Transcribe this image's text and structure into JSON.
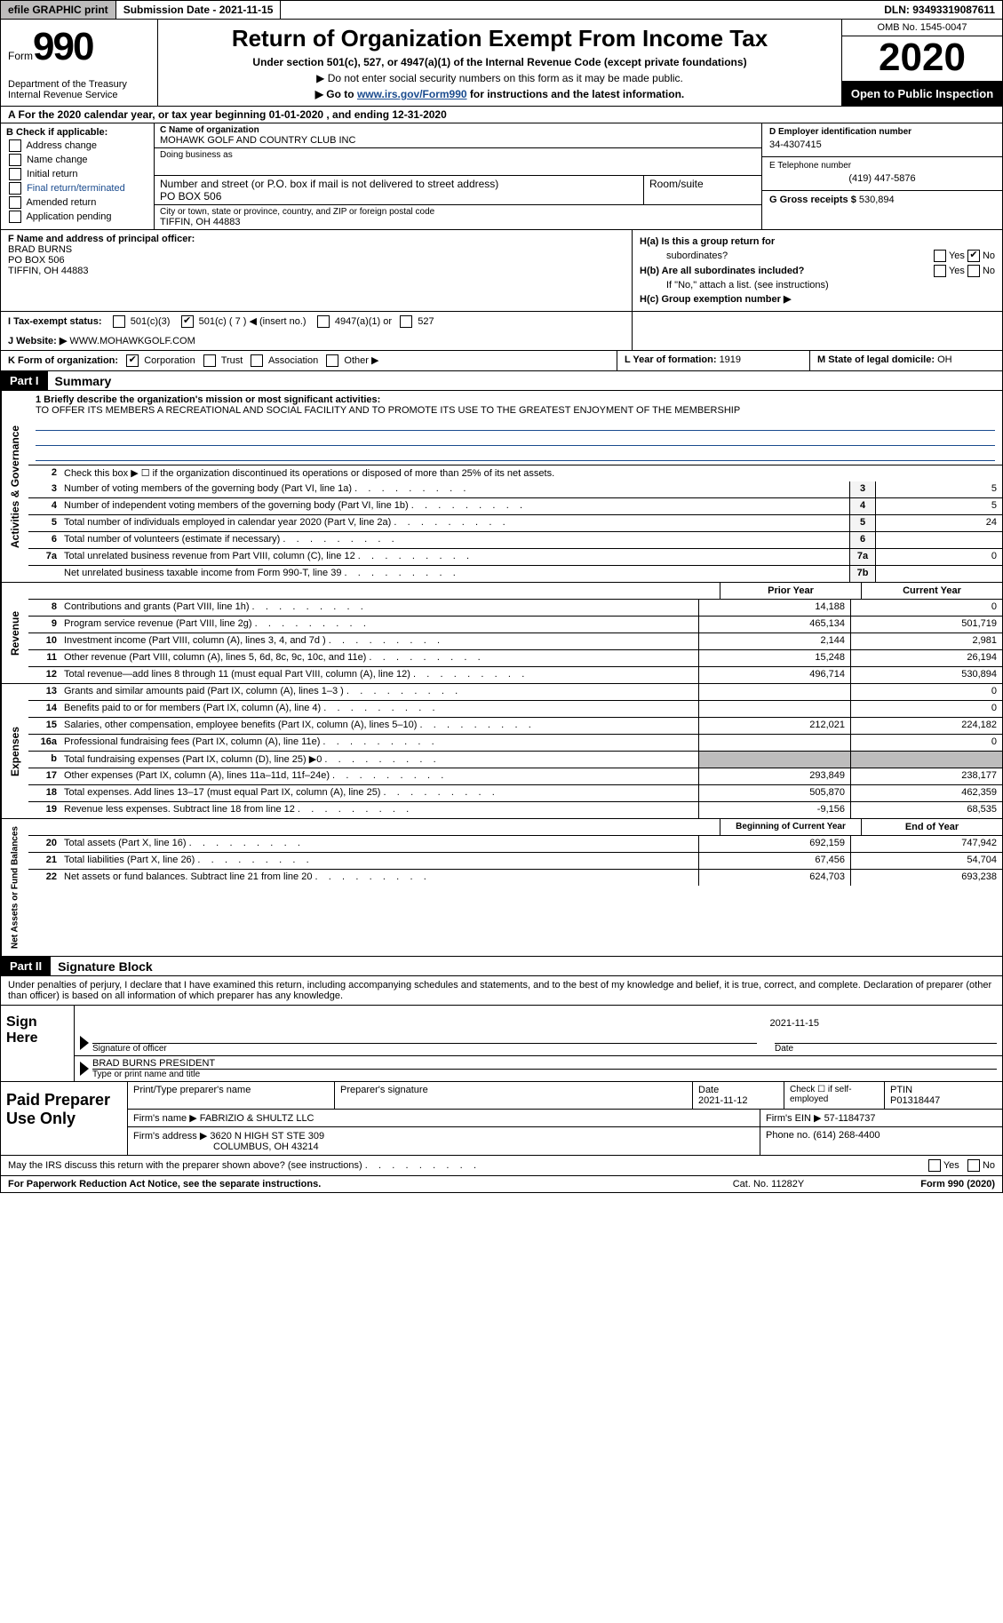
{
  "topbar": {
    "efile_prefix": "efile",
    "efile_suffix": " GRAPHIC print",
    "submission_label": "Submission Date - ",
    "submission_date": "2021-11-15",
    "dln_label": "DLN: ",
    "dln": "93493319087611"
  },
  "header": {
    "form_label": "Form",
    "form_number": "990",
    "dept": "Department of the Treasury\nInternal Revenue Service",
    "title": "Return of Organization Exempt From Income Tax",
    "subtitle": "Under section 501(c), 527, or 4947(a)(1) of the Internal Revenue Code (except private foundations)",
    "instr1": "▶ Do not enter social security numbers on this form as it may be made public.",
    "instr2_pre": "▶ Go to ",
    "instr2_link": "www.irs.gov/Form990",
    "instr2_post": " for instructions and the latest information.",
    "omb": "OMB No. 1545-0047",
    "year": "2020",
    "open_public": "Open to Public Inspection"
  },
  "line_a": "A For the 2020 calendar year, or tax year beginning 01-01-2020   , and ending 12-31-2020",
  "section_b": {
    "label": "B Check if applicable:",
    "items": [
      "Address change",
      "Name change",
      "Initial return",
      "Final return/terminated",
      "Amended return",
      "Application pending"
    ]
  },
  "section_c": {
    "name_label": "C Name of organization",
    "name": "MOHAWK GOLF AND COUNTRY CLUB INC",
    "dba_label": "Doing business as",
    "dba": "",
    "addr_label": "Number and street (or P.O. box if mail is not delivered to street address)",
    "room_label": "Room/suite",
    "addr": "PO BOX 506",
    "city_label": "City or town, state or province, country, and ZIP or foreign postal code",
    "city": "TIFFIN, OH  44883"
  },
  "section_d": {
    "label": "D Employer identification number",
    "ein": "34-4307415",
    "phone_label": "E Telephone number",
    "phone": "(419) 447-5876",
    "gross_label": "G Gross receipts $ ",
    "gross": "530,894"
  },
  "section_f": {
    "label": "F  Name and address of principal officer:",
    "name": "BRAD BURNS",
    "addr1": "PO BOX 506",
    "addr2": "TIFFIN, OH  44883"
  },
  "section_h": {
    "ha_label": "H(a)  Is this a group return for",
    "ha_sub": "subordinates?",
    "hb_label": "H(b)  Are all subordinates included?",
    "hb_note": "If \"No,\" attach a list. (see instructions)",
    "hc_label": "H(c)  Group exemption number ▶",
    "yes": "Yes",
    "no": "No"
  },
  "row_i": {
    "label": "I   Tax-exempt status:",
    "opts": [
      "501(c)(3)",
      "501(c) ( 7 ) ◀ (insert no.)",
      "4947(a)(1) or",
      "527"
    ]
  },
  "row_j": {
    "label": "J   Website: ▶  ",
    "site": "WWW.MOHAWKGOLF.COM"
  },
  "row_k": {
    "label": "K Form of organization:",
    "opts": [
      "Corporation",
      "Trust",
      "Association",
      "Other ▶"
    ]
  },
  "row_l": {
    "label": "L Year of formation: ",
    "val": "1919"
  },
  "row_m": {
    "label": "M State of legal domicile: ",
    "val": "OH"
  },
  "part1": {
    "header": "Part I",
    "title": "Summary",
    "q1_label": "1  Briefly describe the organization's mission or most significant activities:",
    "q1_text": "TO OFFER ITS MEMBERS A RECREATIONAL AND SOCIAL FACILITY AND TO PROMOTE ITS USE TO THE GREATEST ENJOYMENT OF THE MEMBERSHIP",
    "q2": "Check this box ▶ ☐  if the organization discontinued its operations or disposed of more than 25% of its net assets.",
    "gov_rows": [
      {
        "n": "3",
        "d": "Number of voting members of the governing body (Part VI, line 1a)",
        "box": "3",
        "v": "5"
      },
      {
        "n": "4",
        "d": "Number of independent voting members of the governing body (Part VI, line 1b)",
        "box": "4",
        "v": "5"
      },
      {
        "n": "5",
        "d": "Total number of individuals employed in calendar year 2020 (Part V, line 2a)",
        "box": "5",
        "v": "24"
      },
      {
        "n": "6",
        "d": "Total number of volunteers (estimate if necessary)",
        "box": "6",
        "v": ""
      },
      {
        "n": "7a",
        "d": "Total unrelated business revenue from Part VIII, column (C), line 12",
        "box": "7a",
        "v": "0"
      },
      {
        "n": "",
        "d": "Net unrelated business taxable income from Form 990-T, line 39",
        "box": "7b",
        "v": ""
      }
    ],
    "col_prior": "Prior Year",
    "col_current": "Current Year",
    "rev_rows": [
      {
        "n": "8",
        "d": "Contributions and grants (Part VIII, line 1h)",
        "p": "14,188",
        "c": "0"
      },
      {
        "n": "9",
        "d": "Program service revenue (Part VIII, line 2g)",
        "p": "465,134",
        "c": "501,719"
      },
      {
        "n": "10",
        "d": "Investment income (Part VIII, column (A), lines 3, 4, and 7d )",
        "p": "2,144",
        "c": "2,981"
      },
      {
        "n": "11",
        "d": "Other revenue (Part VIII, column (A), lines 5, 6d, 8c, 9c, 10c, and 11e)",
        "p": "15,248",
        "c": "26,194"
      },
      {
        "n": "12",
        "d": "Total revenue—add lines 8 through 11 (must equal Part VIII, column (A), line 12)",
        "p": "496,714",
        "c": "530,894"
      }
    ],
    "exp_rows": [
      {
        "n": "13",
        "d": "Grants and similar amounts paid (Part IX, column (A), lines 1–3 )",
        "p": "",
        "c": "0"
      },
      {
        "n": "14",
        "d": "Benefits paid to or for members (Part IX, column (A), line 4)",
        "p": "",
        "c": "0"
      },
      {
        "n": "15",
        "d": "Salaries, other compensation, employee benefits (Part IX, column (A), lines 5–10)",
        "p": "212,021",
        "c": "224,182"
      },
      {
        "n": "16a",
        "d": "Professional fundraising fees (Part IX, column (A), line 11e)",
        "p": "",
        "c": "0"
      },
      {
        "n": "b",
        "d": "Total fundraising expenses (Part IX, column (D), line 25) ▶0",
        "p": "SHADED",
        "c": "SHADED"
      },
      {
        "n": "17",
        "d": "Other expenses (Part IX, column (A), lines 11a–11d, 11f–24e)",
        "p": "293,849",
        "c": "238,177"
      },
      {
        "n": "18",
        "d": "Total expenses. Add lines 13–17 (must equal Part IX, column (A), line 25)",
        "p": "505,870",
        "c": "462,359"
      },
      {
        "n": "19",
        "d": "Revenue less expenses. Subtract line 18 from line 12",
        "p": "-9,156",
        "c": "68,535"
      }
    ],
    "col_begin": "Beginning of Current Year",
    "col_end": "End of Year",
    "net_rows": [
      {
        "n": "20",
        "d": "Total assets (Part X, line 16)",
        "p": "692,159",
        "c": "747,942"
      },
      {
        "n": "21",
        "d": "Total liabilities (Part X, line 26)",
        "p": "67,456",
        "c": "54,704"
      },
      {
        "n": "22",
        "d": "Net assets or fund balances. Subtract line 21 from line 20",
        "p": "624,703",
        "c": "693,238"
      }
    ],
    "vert_gov": "Activities & Governance",
    "vert_rev": "Revenue",
    "vert_exp": "Expenses",
    "vert_net": "Net Assets or Fund Balances"
  },
  "part2": {
    "header": "Part II",
    "title": "Signature Block",
    "penalties": "Under penalties of perjury, I declare that I have examined this return, including accompanying schedules and statements, and to the best of my knowledge and belief, it is true, correct, and complete. Declaration of preparer (other than officer) is based on all information of which preparer has any knowledge.",
    "sign_here": "Sign Here",
    "sig_officer_label": "Signature of officer",
    "sig_date": "2021-11-15",
    "date_label": "Date",
    "officer_name": "BRAD BURNS PRESIDENT",
    "officer_name_label": "Type or print name and title"
  },
  "prep": {
    "label": "Paid Preparer Use Only",
    "h_name": "Print/Type preparer's name",
    "h_sig": "Preparer's signature",
    "h_date": "Date",
    "date": "2021-11-12",
    "h_check": "Check ☐ if self-employed",
    "h_ptin": "PTIN",
    "ptin": "P01318447",
    "firm_name_label": "Firm's name    ▶ ",
    "firm_name": "FABRIZIO & SHULTZ LLC",
    "firm_ein_label": "Firm's EIN ▶ ",
    "firm_ein": "57-1184737",
    "firm_addr_label": "Firm's address ▶ ",
    "firm_addr1": "3620 N HIGH ST STE 309",
    "firm_addr2": "COLUMBUS, OH  43214",
    "phone_label": "Phone no. ",
    "phone": "(614) 268-4400"
  },
  "discuss": {
    "text": "May the IRS discuss this return with the preparer shown above? (see instructions)",
    "yes": "Yes",
    "no": "No"
  },
  "footer": {
    "left": "For Paperwork Reduction Act Notice, see the separate instructions.",
    "mid": "Cat. No. 11282Y",
    "right_pre": "Form ",
    "right_form": "990",
    "right_post": " (2020)"
  },
  "colors": {
    "link": "#1a4b8e",
    "shade": "#bdbcbc"
  }
}
